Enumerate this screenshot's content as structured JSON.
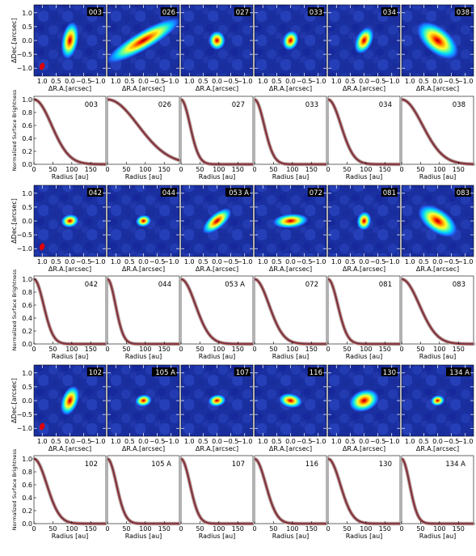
{
  "figure": {
    "map_xlabel": "ΔR.A.[arcsec]",
    "map_ylabel": "ΔDec.[arcsec]",
    "map_xticks": [
      "1.0",
      "0.5",
      "0.0",
      "−0.5",
      "−1.0"
    ],
    "map_yticks": [
      "1.0",
      "0.5",
      "0.0",
      "−0.5",
      "−1.0"
    ],
    "profile_xlabel": "Radius [au]",
    "profile_ylabel": "Normalized Surface Brightness",
    "profile_xticks": [
      "0",
      "50",
      "100",
      "150"
    ],
    "profile_yticks": [
      "1.0",
      "0.8",
      "0.6",
      "0.4",
      "0.2",
      "0.0"
    ],
    "colors": {
      "map_background": "#1a2fa0",
      "profile_line": "#c0392b",
      "profile_core": "#2c3e70"
    }
  },
  "chart_data": {
    "type": "line",
    "xlabel": "Radius [au]",
    "ylabel": "Normalized Surface Brightness",
    "xlim": [
      0,
      190
    ],
    "ylim": [
      0,
      1.05
    ],
    "groups": [
      {
        "sources": [
          {
            "name": "003",
            "half_width_au": 55,
            "ellipse": {
              "major": 0.32,
              "minor": 0.14,
              "pa_deg": 10
            }
          },
          {
            "name": "026",
            "half_width_au": 95,
            "ellipse": {
              "major": 0.72,
              "minor": 0.16,
              "pa_deg": 60
            }
          },
          {
            "name": "027",
            "half_width_au": 28,
            "ellipse": {
              "major": 0.16,
              "minor": 0.14,
              "pa_deg": 0
            }
          },
          {
            "name": "033",
            "half_width_au": 30,
            "ellipse": {
              "major": 0.17,
              "minor": 0.13,
              "pa_deg": 20
            }
          },
          {
            "name": "034",
            "half_width_au": 40,
            "ellipse": {
              "major": 0.24,
              "minor": 0.14,
              "pa_deg": 25
            }
          },
          {
            "name": "038",
            "half_width_au": 65,
            "ellipse": {
              "major": 0.42,
              "minor": 0.22,
              "pa_deg": 130
            }
          }
        ]
      },
      {
        "sources": [
          {
            "name": "042",
            "half_width_au": 30,
            "ellipse": {
              "major": 0.15,
              "minor": 0.11,
              "pa_deg": 80
            }
          },
          {
            "name": "044",
            "half_width_au": 25,
            "ellipse": {
              "major": 0.13,
              "minor": 0.1,
              "pa_deg": 80
            }
          },
          {
            "name": "053 A",
            "half_width_au": 45,
            "ellipse": {
              "major": 0.3,
              "minor": 0.13,
              "pa_deg": 50
            }
          },
          {
            "name": "072",
            "half_width_au": 45,
            "ellipse": {
              "major": 0.3,
              "minor": 0.12,
              "pa_deg": 85
            }
          },
          {
            "name": "081",
            "half_width_au": 30,
            "ellipse": {
              "major": 0.16,
              "minor": 0.12,
              "pa_deg": 10
            }
          },
          {
            "name": "083",
            "half_width_au": 55,
            "ellipse": {
              "major": 0.38,
              "minor": 0.2,
              "pa_deg": 125
            }
          }
        ]
      },
      {
        "sources": [
          {
            "name": "102",
            "half_width_au": 40,
            "ellipse": {
              "major": 0.26,
              "minor": 0.14,
              "pa_deg": 20
            }
          },
          {
            "name": "105 A",
            "half_width_au": 28,
            "ellipse": {
              "major": 0.14,
              "minor": 0.1,
              "pa_deg": 80
            }
          },
          {
            "name": "107",
            "half_width_au": 28,
            "ellipse": {
              "major": 0.15,
              "minor": 0.1,
              "pa_deg": 80
            }
          },
          {
            "name": "116",
            "half_width_au": 35,
            "ellipse": {
              "major": 0.2,
              "minor": 0.12,
              "pa_deg": 100
            }
          },
          {
            "name": "130",
            "half_width_au": 38,
            "ellipse": {
              "major": 0.26,
              "minor": 0.18,
              "pa_deg": 70
            }
          },
          {
            "name": "134 A",
            "half_width_au": 25,
            "ellipse": {
              "major": 0.12,
              "minor": 0.09,
              "pa_deg": 80
            }
          }
        ]
      }
    ]
  }
}
